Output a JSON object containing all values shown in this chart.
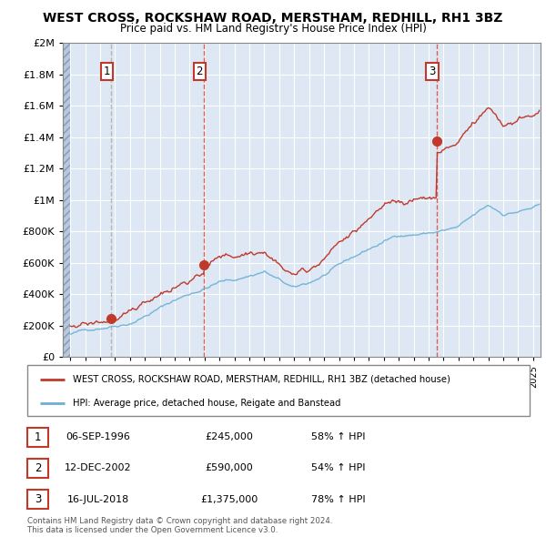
{
  "title": "WEST CROSS, ROCKSHAW ROAD, MERSTHAM, REDHILL, RH1 3BZ",
  "subtitle": "Price paid vs. HM Land Registry's House Price Index (HPI)",
  "sale_prices": [
    245000,
    590000,
    1375000
  ],
  "sale_labels": [
    "1",
    "2",
    "3"
  ],
  "hpi_label": "HPI: Average price, detached house, Reigate and Banstead",
  "property_label": "WEST CROSS, ROCKSHAW ROAD, MERSTHAM, REDHILL, RH1 3BZ (detached house)",
  "table_rows": [
    {
      "label": "1",
      "date": "06-SEP-1996",
      "price": "£245,000",
      "change": "58% ↑ HPI"
    },
    {
      "label": "2",
      "date": "12-DEC-2002",
      "price": "£590,000",
      "change": "54% ↑ HPI"
    },
    {
      "label": "3",
      "date": "16-JUL-2018",
      "price": "£1,375,000",
      "change": "78% ↑ HPI"
    }
  ],
  "footer": "Contains HM Land Registry data © Crown copyright and database right 2024.\nThis data is licensed under the Open Government Licence v3.0.",
  "property_color": "#c0392b",
  "hpi_color": "#6baed6",
  "dashed_line_color_gray": "#aaaaaa",
  "dashed_line_color_red": "#e74c3c",
  "chart_bg": "#dde8f4",
  "ylim": [
    0,
    2000000
  ],
  "yticks": [
    0,
    200000,
    400000,
    600000,
    800000,
    1000000,
    1200000,
    1400000,
    1600000,
    1800000,
    2000000
  ],
  "xlim_start": 1993.5,
  "xlim_end": 2025.5,
  "sale_years": [
    1996.75,
    2002.958,
    2018.542
  ]
}
